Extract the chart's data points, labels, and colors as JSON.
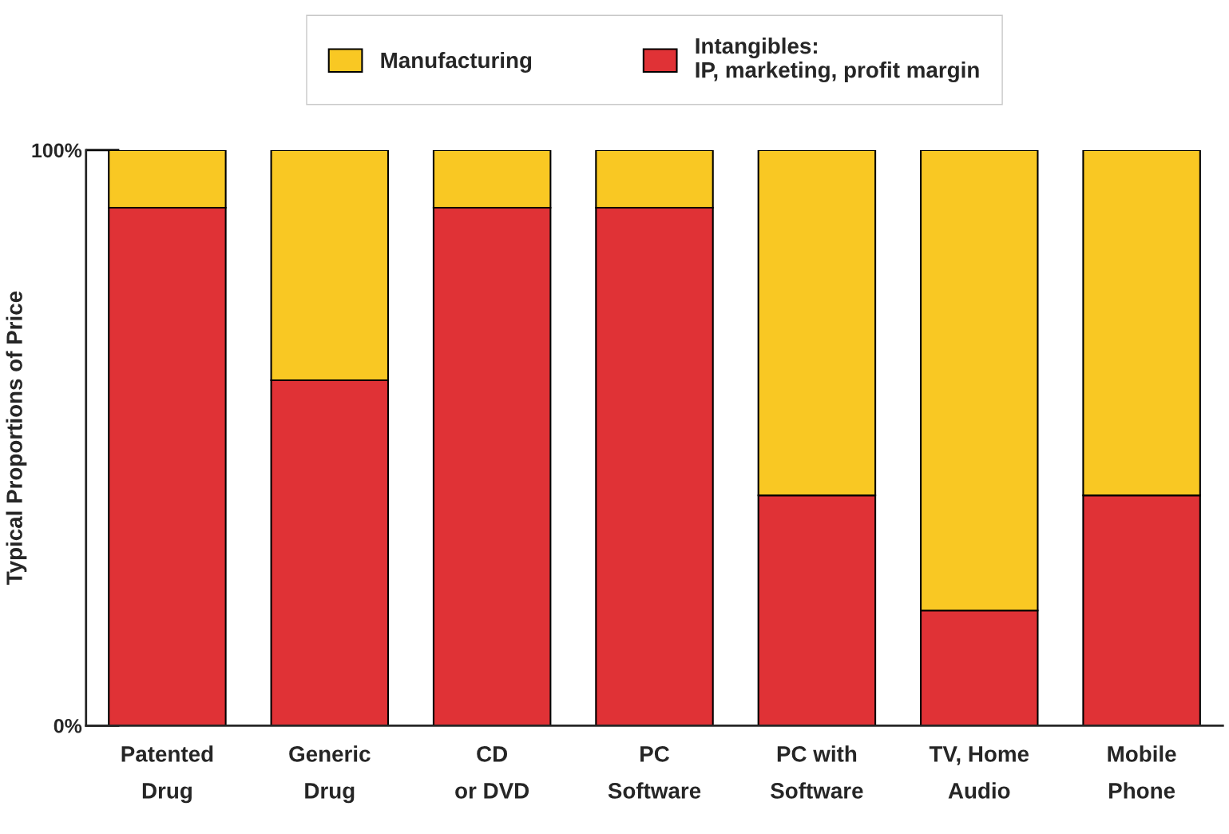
{
  "chart_data": {
    "type": "bar",
    "stacked": true,
    "ylabel": "Typical Proportions of Price",
    "categories": [
      "Patented\nDrug",
      "Generic\nDrug",
      "CD\nor DVD",
      "PC\nSoftware",
      "PC with\nSoftware",
      "TV, Home\nAudio",
      "Mobile\nPhone"
    ],
    "series": [
      {
        "name": "Intangibles:\nIP, marketing, profit margin",
        "color": "#e03236",
        "values": [
          90,
          60,
          90,
          90,
          40,
          20,
          40
        ]
      },
      {
        "name": "Manufacturing",
        "color": "#f9c823",
        "values": [
          10,
          40,
          10,
          10,
          60,
          80,
          60
        ]
      }
    ],
    "ylim": [
      0,
      100
    ],
    "yticks": [
      {
        "value": 0,
        "label": "0%"
      },
      {
        "value": 100,
        "label": "100%"
      }
    ],
    "grid": false,
    "legend": "top"
  }
}
